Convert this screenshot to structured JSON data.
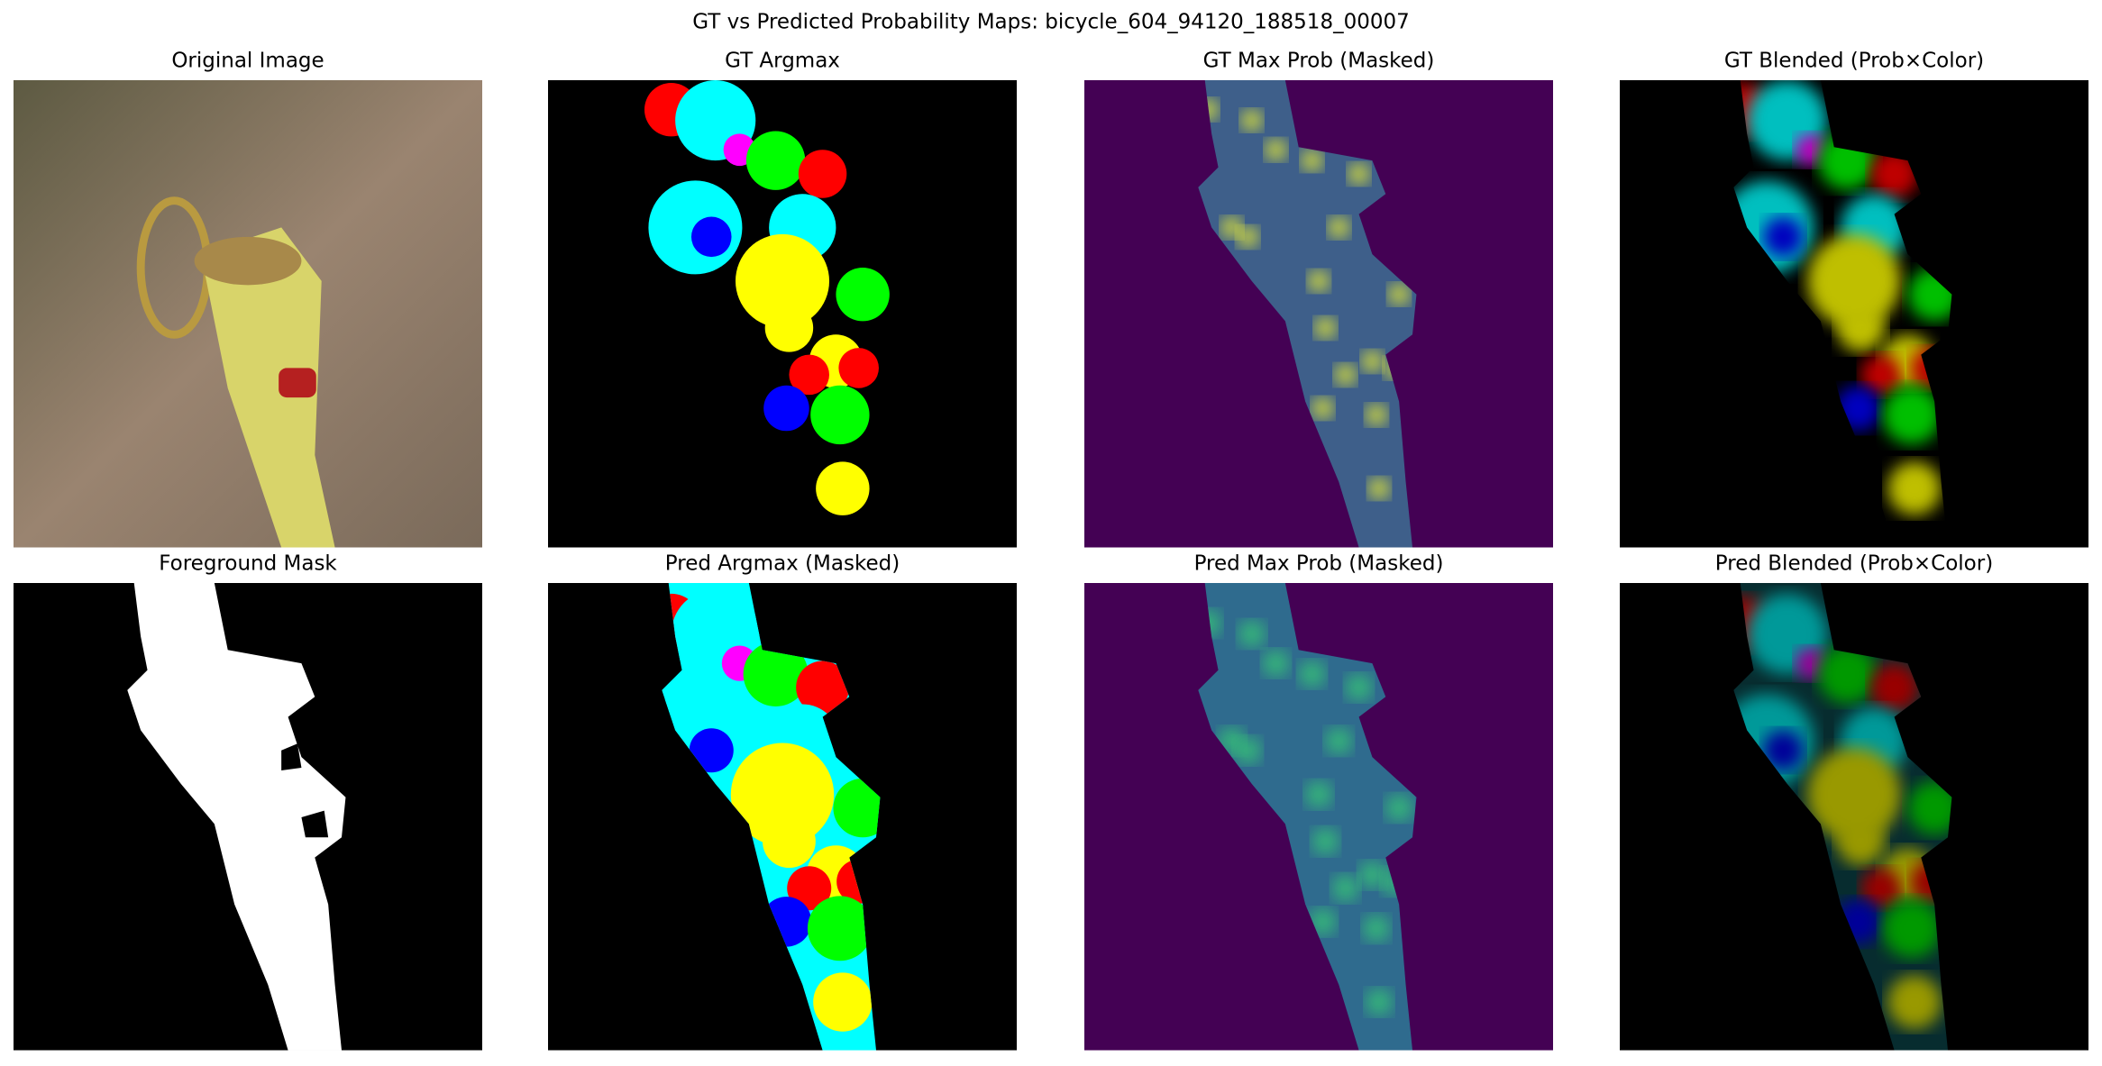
{
  "title": "GT vs Predicted Probability Maps: bicycle_604_94120_188518_00007",
  "panels": [
    {
      "title": "Original Image"
    },
    {
      "title": "GT Argmax"
    },
    {
      "title": "GT Max Prob (Masked)"
    },
    {
      "title": "GT Blended (Prob×Color)"
    },
    {
      "title": "Foreground Mask"
    },
    {
      "title": "Pred Argmax (Masked)"
    },
    {
      "title": "Pred Max Prob (Masked)"
    },
    {
      "title": "Pred Blended (Prob×Color)"
    }
  ]
}
